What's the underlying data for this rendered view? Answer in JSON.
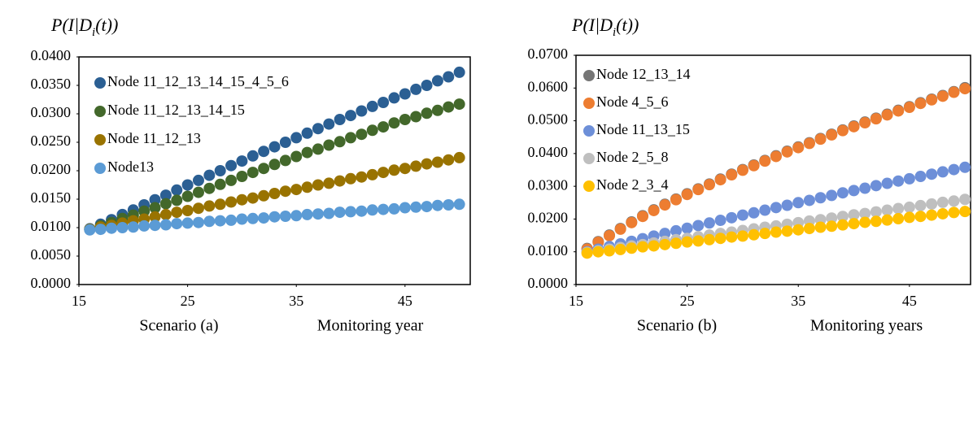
{
  "chart_data": [
    {
      "type": "scatter",
      "y_label": [
        "P(I|D",
        "i",
        "(t))"
      ],
      "subtitle": "Scenario (a)",
      "x_label": "Monitoring  year",
      "xlim": [
        15,
        51
      ],
      "xticks": [
        15,
        25,
        35,
        45
      ],
      "ylim": [
        0,
        0.04
      ],
      "yticks": [
        {
          "value": 0,
          "label": "0.0000"
        },
        {
          "value": 0.005,
          "label": "0.0050"
        },
        {
          "value": 0.01,
          "label": "0.0100"
        },
        {
          "value": 0.015,
          "label": "0.0150"
        },
        {
          "value": 0.02,
          "label": "0.0200"
        },
        {
          "value": 0.025,
          "label": "0.0250"
        },
        {
          "value": 0.03,
          "label": "0.0300"
        },
        {
          "value": 0.035,
          "label": "0.0350"
        },
        {
          "value": 0.04,
          "label": "0.0400"
        }
      ],
      "legend": "upper left",
      "x": [
        16,
        17,
        18,
        19,
        20,
        21,
        22,
        23,
        24,
        25,
        26,
        27,
        28,
        29,
        30,
        31,
        32,
        33,
        34,
        35,
        36,
        37,
        38,
        39,
        40,
        41,
        42,
        43,
        44,
        45,
        46,
        47,
        48,
        49,
        50
      ],
      "series": [
        {
          "name": "Node 11_12_13_14_15_4_5_6",
          "color": "#2b5f93",
          "values": [
            0.0098,
            0.0106,
            0.0114,
            0.0123,
            0.0131,
            0.014,
            0.0149,
            0.0157,
            0.0166,
            0.0175,
            0.0183,
            0.0192,
            0.02,
            0.0209,
            0.0217,
            0.0226,
            0.0234,
            0.0242,
            0.025,
            0.0258,
            0.0266,
            0.0274,
            0.0282,
            0.029,
            0.0297,
            0.0305,
            0.0313,
            0.032,
            0.0328,
            0.0335,
            0.0343,
            0.035,
            0.0358,
            0.0365,
            0.0373
          ]
        },
        {
          "name": "Node 11_12_13_14_15",
          "color": "#43682b",
          "values": [
            0.0097,
            0.0103,
            0.0109,
            0.0116,
            0.0122,
            0.0129,
            0.0135,
            0.0142,
            0.0148,
            0.0155,
            0.0162,
            0.0169,
            0.0176,
            0.0183,
            0.019,
            0.0197,
            0.0204,
            0.0211,
            0.0218,
            0.0225,
            0.0232,
            0.0238,
            0.0245,
            0.0251,
            0.0258,
            0.0264,
            0.0271,
            0.0277,
            0.0284,
            0.029,
            0.0295,
            0.0301,
            0.0306,
            0.0312,
            0.0317
          ]
        },
        {
          "name": "Node 11_12_13",
          "color": "#997300",
          "values": [
            0.0097,
            0.0101,
            0.0104,
            0.0108,
            0.0112,
            0.0115,
            0.0119,
            0.0123,
            0.0127,
            0.013,
            0.0134,
            0.0138,
            0.0141,
            0.0145,
            0.0149,
            0.0152,
            0.0156,
            0.016,
            0.0164,
            0.0167,
            0.0171,
            0.0175,
            0.0178,
            0.0182,
            0.0186,
            0.0189,
            0.0193,
            0.0197,
            0.0201,
            0.0204,
            0.0208,
            0.0212,
            0.0215,
            0.0219,
            0.0223
          ]
        },
        {
          "name": "Node13",
          "color": "#5b9bd5",
          "values": [
            0.0096,
            0.0097,
            0.0099,
            0.01,
            0.0101,
            0.0103,
            0.0104,
            0.0105,
            0.0107,
            0.0108,
            0.0109,
            0.0111,
            0.0112,
            0.0113,
            0.0115,
            0.0116,
            0.0117,
            0.0119,
            0.012,
            0.0121,
            0.0123,
            0.0124,
            0.0125,
            0.0127,
            0.0128,
            0.0129,
            0.0131,
            0.0132,
            0.0133,
            0.0135,
            0.0136,
            0.0137,
            0.0139,
            0.014,
            0.0141
          ]
        }
      ]
    },
    {
      "type": "scatter",
      "y_label": [
        "P(I|D",
        "i",
        "(t))"
      ],
      "subtitle": "Scenario (b)",
      "x_label": "Monitoring years",
      "xlim": [
        15,
        50.5
      ],
      "xticks": [
        15,
        25,
        35,
        45
      ],
      "ylim": [
        0,
        0.07
      ],
      "yticks": [
        {
          "value": 0,
          "label": "0.0000"
        },
        {
          "value": 0.01,
          "label": "0.0100"
        },
        {
          "value": 0.02,
          "label": "0.0200"
        },
        {
          "value": 0.03,
          "label": "0.0300"
        },
        {
          "value": 0.04,
          "label": "0.0400"
        },
        {
          "value": 0.05,
          "label": "0.0500"
        },
        {
          "value": 0.06,
          "label": "0.0600"
        },
        {
          "value": 0.07,
          "label": "0.0700"
        }
      ],
      "legend": "upper left",
      "x": [
        16,
        17,
        18,
        19,
        20,
        21,
        22,
        23,
        24,
        25,
        26,
        27,
        28,
        29,
        30,
        31,
        32,
        33,
        34,
        35,
        36,
        37,
        38,
        39,
        40,
        41,
        42,
        43,
        44,
        45,
        46,
        47,
        48,
        49,
        50
      ],
      "series": [
        {
          "name": "Node 12_13_14",
          "color": "#767676",
          "values": [
            0.011,
            0.0131,
            0.0151,
            0.0171,
            0.0191,
            0.021,
            0.0228,
            0.0245,
            0.0261,
            0.0277,
            0.0292,
            0.0307,
            0.0322,
            0.0337,
            0.0351,
            0.0365,
            0.0379,
            0.0393,
            0.0407,
            0.042,
            0.0433,
            0.0446,
            0.0459,
            0.0472,
            0.0484,
            0.0496,
            0.0508,
            0.052,
            0.0532,
            0.0543,
            0.0555,
            0.0566,
            0.0577,
            0.0589,
            0.0601
          ]
        },
        {
          "name": "Node 4_5_6",
          "color": "#ed7d31",
          "values": [
            0.0108,
            0.0129,
            0.0149,
            0.0169,
            0.0189,
            0.0208,
            0.0226,
            0.0243,
            0.0259,
            0.0275,
            0.029,
            0.0305,
            0.032,
            0.0335,
            0.0349,
            0.0363,
            0.0377,
            0.0391,
            0.0405,
            0.0418,
            0.0431,
            0.0444,
            0.0457,
            0.047,
            0.0482,
            0.0494,
            0.0506,
            0.0518,
            0.053,
            0.0541,
            0.0553,
            0.0564,
            0.0575,
            0.0587,
            0.0598
          ]
        },
        {
          "name": "Node 11_13_15",
          "color": "#6d8fd8",
          "values": [
            0.01,
            0.0108,
            0.0116,
            0.0124,
            0.0132,
            0.014,
            0.0148,
            0.0156,
            0.0164,
            0.0172,
            0.018,
            0.0188,
            0.0196,
            0.0204,
            0.0212,
            0.0219,
            0.0227,
            0.0235,
            0.0242,
            0.025,
            0.0257,
            0.0265,
            0.0272,
            0.028,
            0.0287,
            0.0294,
            0.0302,
            0.0309,
            0.0316,
            0.0323,
            0.033,
            0.0337,
            0.0344,
            0.0351,
            0.0358
          ]
        },
        {
          "name": "Node 2_5_8",
          "color": "#bfbfbf",
          "values": [
            0.0098,
            0.0103,
            0.0108,
            0.0113,
            0.0118,
            0.0122,
            0.0127,
            0.0132,
            0.0137,
            0.0141,
            0.0146,
            0.0151,
            0.0156,
            0.016,
            0.0165,
            0.017,
            0.0175,
            0.0179,
            0.0184,
            0.0189,
            0.0194,
            0.0198,
            0.0203,
            0.0208,
            0.0213,
            0.0217,
            0.0222,
            0.0227,
            0.0232,
            0.0236,
            0.0241,
            0.0246,
            0.0251,
            0.0255,
            0.026
          ]
        },
        {
          "name": "Node 2_3_4",
          "color": "#ffc000",
          "values": [
            0.0096,
            0.01,
            0.0103,
            0.0107,
            0.0111,
            0.0115,
            0.0118,
            0.0122,
            0.0126,
            0.013,
            0.0133,
            0.0137,
            0.0141,
            0.0145,
            0.0148,
            0.0152,
            0.0156,
            0.016,
            0.0163,
            0.0167,
            0.0171,
            0.0175,
            0.0178,
            0.0182,
            0.0186,
            0.019,
            0.0193,
            0.0197,
            0.0201,
            0.0205,
            0.0208,
            0.0212,
            0.0216,
            0.022,
            0.0223
          ]
        }
      ]
    }
  ]
}
